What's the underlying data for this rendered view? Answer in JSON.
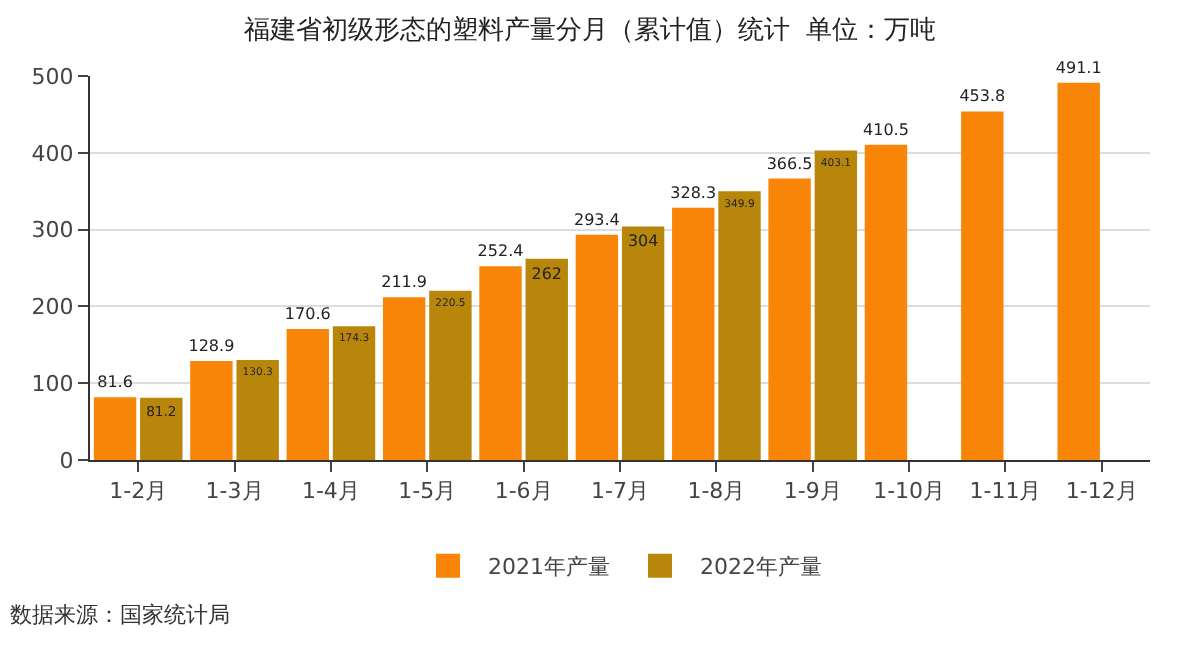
{
  "chart_data": {
    "type": "bar",
    "title": "福建省初级形态的塑料产量分月（累计值）统计  单位：万吨",
    "categories": [
      "1-2月",
      "1-3月",
      "1-4月",
      "1-5月",
      "1-6月",
      "1-7月",
      "1-8月",
      "1-9月",
      "1-10月",
      "1-11月",
      "1-12月"
    ],
    "series": [
      {
        "name": "2021年产量",
        "color": "#f98508",
        "values": [
          81.6,
          128.9,
          170.6,
          211.9,
          252.4,
          293.4,
          328.3,
          366.5,
          410.5,
          453.8,
          491.1
        ]
      },
      {
        "name": "2022年产量",
        "color": "#b8860b",
        "values": [
          81.2,
          130.3,
          174.3,
          220.5,
          262,
          304,
          349.9,
          403.1,
          null,
          null,
          null
        ]
      }
    ],
    "ylim": [
      0,
      500
    ],
    "yticks": [
      0,
      100,
      200,
      300,
      400,
      500
    ],
    "grid": "y",
    "legend": "bottom",
    "data_labels": true,
    "annotations": [
      "数据来源：国家统计局"
    ]
  }
}
